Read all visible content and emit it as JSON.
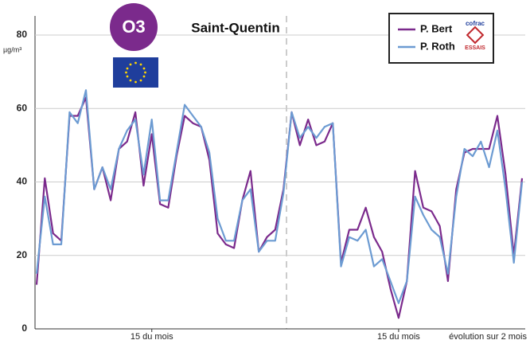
{
  "badge": "O3",
  "chart_data": {
    "type": "line",
    "title": "Saint-Quentin",
    "y_unit": "µg/m³",
    "x_note": "évolution sur 2 mois",
    "categories": [
      null,
      null,
      null,
      null,
      null,
      null,
      null,
      null,
      null,
      null,
      null,
      null,
      null,
      null,
      "15 du mois",
      null,
      null,
      null,
      null,
      null,
      null,
      null,
      null,
      null,
      null,
      null,
      null,
      null,
      null,
      null,
      null,
      null,
      null,
      null,
      null,
      null,
      null,
      null,
      null,
      null,
      null,
      null,
      null,
      null,
      "15 du mois",
      null,
      null,
      null,
      null,
      null,
      null,
      null,
      null,
      null,
      null,
      null,
      null,
      null,
      null,
      null
    ],
    "series": [
      {
        "name": "P. Bert",
        "color": "#7b2a8c",
        "values": [
          12,
          41,
          26,
          24,
          58,
          58,
          63,
          38,
          44,
          35,
          49,
          51,
          59,
          39,
          53,
          34,
          33,
          47,
          58,
          56,
          55,
          46,
          26,
          23,
          22,
          35,
          43,
          21,
          25,
          27,
          38,
          59,
          50,
          57,
          50,
          51,
          56,
          18,
          27,
          27,
          33,
          25,
          21,
          11,
          3,
          13,
          43,
          33,
          32,
          28,
          13,
          38,
          48,
          49,
          49,
          49,
          58,
          42,
          20,
          41
        ]
      },
      {
        "name": "P. Roth",
        "color": "#6c9bd2",
        "values": [
          15,
          36,
          23,
          23,
          59,
          56,
          65,
          38,
          44,
          38,
          49,
          54,
          57,
          42,
          57,
          35,
          35,
          48,
          61,
          58,
          55,
          48,
          30,
          24,
          24,
          35,
          38,
          21,
          24,
          24,
          37,
          59,
          52,
          55,
          52,
          55,
          56,
          17,
          25,
          24,
          27,
          17,
          19,
          13,
          7,
          13,
          36,
          31,
          27,
          25,
          15,
          36,
          49,
          47,
          51,
          44,
          54,
          38,
          18,
          40
        ]
      }
    ],
    "ylim": [
      0,
      80
    ],
    "yticks": [
      0,
      20,
      40,
      60,
      80
    ],
    "grid": true
  },
  "legend_logo": {
    "top": "cofrac",
    "bottom": "ESSAIS"
  }
}
